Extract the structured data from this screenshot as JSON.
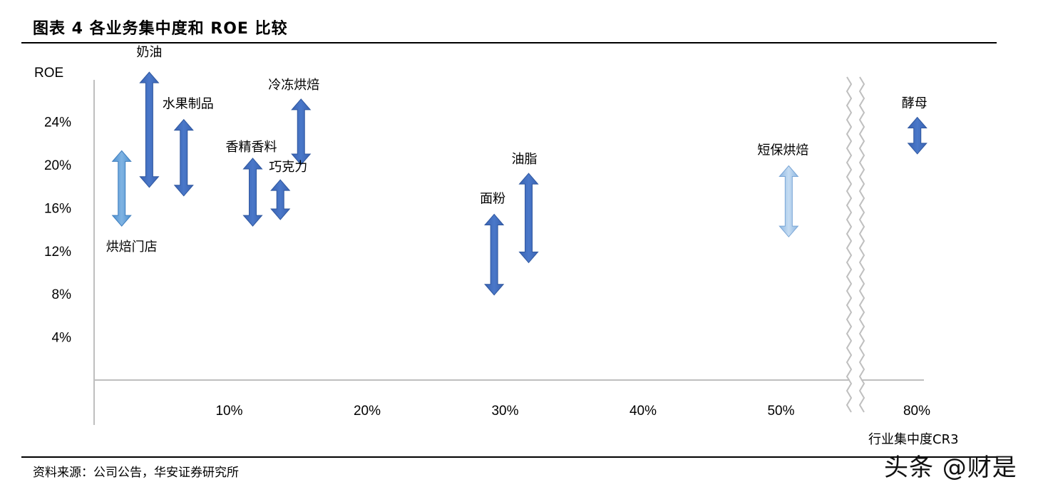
{
  "header": {
    "title": "图表 4 各业务集中度和 ROE 比较"
  },
  "footer": {
    "source": "资料来源：公司公告，华安证券研究所",
    "watermark": "头条 @财是"
  },
  "colors": {
    "dark_arrow": "#3F6CC0",
    "mid_arrow": "#5B9BD5",
    "light_arrow": "#9DC3E6",
    "axis": "#BFBFBF"
  },
  "chart_data": {
    "type": "range",
    "ylabel": "ROE",
    "xlabel": "行业集中度CR3",
    "y_ticks": [
      "4%",
      "8%",
      "12%",
      "16%",
      "20%",
      "24%"
    ],
    "x_ticks": [
      "10%",
      "20%",
      "30%",
      "40%",
      "50%",
      "80%"
    ],
    "axis_break": "50%-80%",
    "series": [
      {
        "name": "奶油",
        "x": 4,
        "low": 17.9,
        "high": 28.6,
        "color": "dark"
      },
      {
        "name": "水果制品",
        "x": 6.5,
        "low": 17.1,
        "high": 24.2,
        "color": "dark"
      },
      {
        "name": "烘焙门店",
        "x": 2,
        "low": 14.3,
        "high": 21.3,
        "color": "mid"
      },
      {
        "name": "香精香料",
        "x": 11.5,
        "low": 14.3,
        "high": 20.6,
        "color": "dark"
      },
      {
        "name": "巧克力",
        "x": 13.5,
        "low": 14.9,
        "high": 18.6,
        "color": "dark"
      },
      {
        "name": "冷冻烘焙",
        "x": 15,
        "low": 20,
        "high": 26.1,
        "color": "dark"
      },
      {
        "name": "面粉",
        "x": 29,
        "low": 7.9,
        "high": 15.4,
        "color": "dark"
      },
      {
        "name": "油脂",
        "x": 31.5,
        "low": 10.9,
        "high": 19.2,
        "color": "dark"
      },
      {
        "name": "短保烘焙",
        "x": 51,
        "low": 13.3,
        "high": 19.9,
        "color": "light"
      },
      {
        "name": "酵母",
        "x": 79.5,
        "low": 21,
        "high": 24.4,
        "color": "dark"
      }
    ]
  }
}
